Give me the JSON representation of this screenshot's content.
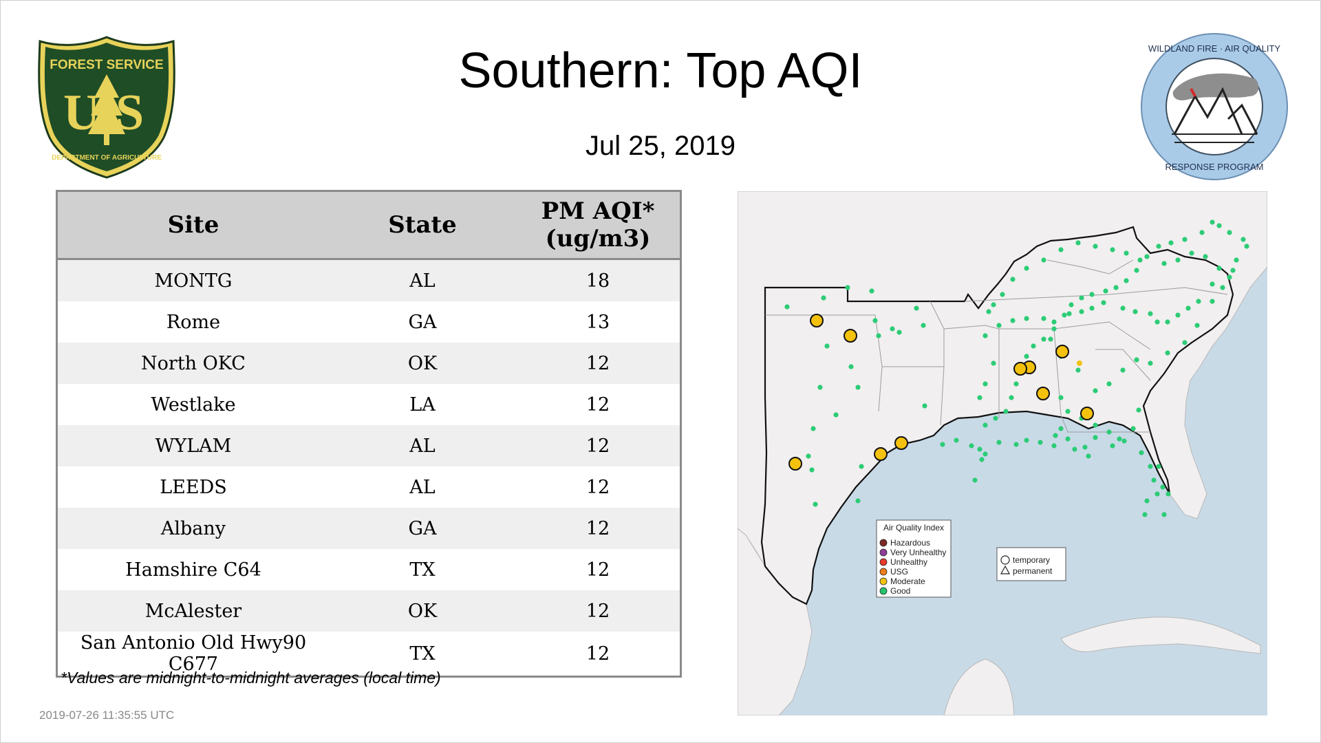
{
  "title": "Southern: Top AQI",
  "date": "Jul 25, 2019",
  "logos": {
    "left": {
      "icon": "forest-service-shield-icon",
      "top_text": "FOREST SERVICE",
      "letters": "US",
      "bottom_text": "DEPARTMENT OF AGRICULTURE"
    },
    "right": {
      "icon": "wildland-fire-air-quality-seal-icon",
      "ring_top": "WILDLAND FIRE · AIR QUALITY",
      "ring_bottom": "RESPONSE PROGRAM"
    }
  },
  "table": {
    "headers": {
      "site": "Site",
      "state": "State",
      "value_line1": "PM AQI*",
      "value_line2": "(ug/m3)"
    },
    "rows": [
      {
        "site": "MONTG",
        "state": "AL",
        "value": "18"
      },
      {
        "site": "Rome",
        "state": "GA",
        "value": "13"
      },
      {
        "site": "North OKC",
        "state": "OK",
        "value": "12"
      },
      {
        "site": "Westlake",
        "state": "LA",
        "value": "12"
      },
      {
        "site": "WYLAM",
        "state": "AL",
        "value": "12"
      },
      {
        "site": "LEEDS",
        "state": "AL",
        "value": "12"
      },
      {
        "site": "Albany",
        "state": "GA",
        "value": "12"
      },
      {
        "site": "Hamshire C64",
        "state": "TX",
        "value": "12"
      },
      {
        "site": "McAlester",
        "state": "OK",
        "value": "12"
      },
      {
        "site": "San Antonio Old Hwy90 C677",
        "state": "TX",
        "value": "12"
      }
    ]
  },
  "footnote": "*Values are midnight-to-midnight averages (local time)",
  "timestamp": "2019-07-26 11:35:55 UTC",
  "map": {
    "legend": {
      "title": "Air Quality Index",
      "items": [
        {
          "label": "Hazardous",
          "color": "#7e2a26"
        },
        {
          "label": "Very Unhealthy",
          "color": "#8f3f97"
        },
        {
          "label": "Unhealthy",
          "color": "#e8392b"
        },
        {
          "label": "USG",
          "color": "#f07d1c"
        },
        {
          "label": "Moderate",
          "color": "#f5c313"
        },
        {
          "label": "Good",
          "color": "#27c46e"
        }
      ]
    },
    "shape_legend": {
      "temporary": "temporary",
      "permanent": "permanent"
    },
    "colors": {
      "water": "#c9dae7",
      "land": "#f1efef",
      "good": "#2ccc76",
      "moderate": "#f4c20d"
    }
  }
}
